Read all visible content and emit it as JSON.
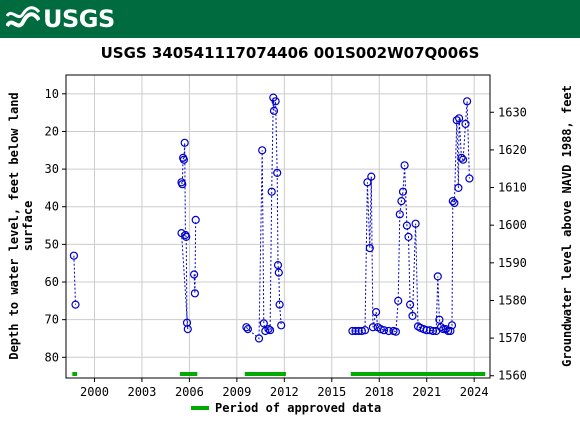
{
  "header": {
    "logo_text": "USGS",
    "brand_color": "#006b3f"
  },
  "chart_data": {
    "type": "scatter",
    "title": "USGS 340541117074406 001S002W07Q006S",
    "ylabel_left": "Depth to water level, feet below land surface",
    "ylabel_left_lines": [
      "Depth to water level, feet below land",
      "surface"
    ],
    "ylabel_right": "Groundwater level above NAVD 1988, feet",
    "xlim": [
      1998.2,
      2025.0
    ],
    "ylim_left": [
      85.5,
      5.0
    ],
    "ylim_right": [
      1559.4,
      1639.9
    ],
    "x_ticks": [
      2000,
      2003,
      2006,
      2009,
      2012,
      2015,
      2018,
      2021,
      2024
    ],
    "x_tick_labels": [
      "2000",
      "2003",
      "2006",
      "2009",
      "2012",
      "2015",
      "2018",
      "2021",
      "2024"
    ],
    "y_left_ticks": [
      10,
      20,
      30,
      40,
      50,
      60,
      70,
      80
    ],
    "y_left_tick_labels": [
      "10",
      "20",
      "30",
      "40",
      "50",
      "60",
      "70",
      "80"
    ],
    "y_right_ticks": [
      1560,
      1570,
      1580,
      1590,
      1600,
      1610,
      1620,
      1630
    ],
    "y_right_tick_labels": [
      "1560",
      "1570",
      "1580",
      "1590",
      "1600",
      "1610",
      "1620",
      "1630"
    ],
    "grid": true,
    "series_color": "#0000cc",
    "approved_color": "#00aa00",
    "series": [
      {
        "segments": [
          [
            [
              1998.7,
              53.0
            ],
            [
              1998.8,
              66.0
            ]
          ],
          [
            [
              2005.5,
              33.5
            ],
            [
              2005.55,
              34.0
            ],
            [
              2005.6,
              27.0
            ],
            [
              2005.65,
              27.5
            ],
            [
              2005.7,
              23.0
            ],
            [
              2005.75,
              47.5
            ],
            [
              2005.8,
              48.0
            ],
            [
              2005.85,
              70.8
            ],
            [
              2005.9,
              72.5
            ],
            [
              2005.5,
              47.0
            ]
          ],
          [
            [
              2006.3,
              58.0
            ],
            [
              2006.35,
              63.0
            ],
            [
              2006.4,
              43.5
            ]
          ],
          [
            [
              2009.6,
              72.0
            ],
            [
              2009.7,
              72.5
            ],
            [
              2010.4,
              75.0
            ],
            [
              2010.6,
              25.0
            ],
            [
              2010.7,
              71.0
            ],
            [
              2010.8,
              73.0
            ],
            [
              2011.0,
              72.5
            ],
            [
              2011.1,
              72.8
            ],
            [
              2011.2,
              36.0
            ],
            [
              2011.3,
              11.0
            ],
            [
              2011.35,
              14.5
            ],
            [
              2011.45,
              12.0
            ],
            [
              2011.55,
              31.0
            ],
            [
              2011.6,
              55.5
            ],
            [
              2011.65,
              57.5
            ],
            [
              2011.7,
              66.0
            ],
            [
              2011.8,
              71.5
            ]
          ]
        ]
      },
      {
        "segments": [
          [
            [
              2016.3,
              73.0
            ],
            [
              2016.5,
              73.0
            ],
            [
              2016.7,
              73.0
            ],
            [
              2016.9,
              73.0
            ],
            [
              2017.1,
              72.8
            ],
            [
              2017.25,
              33.5
            ],
            [
              2017.4,
              51.0
            ],
            [
              2017.5,
              32.0
            ],
            [
              2017.6,
              72.0
            ],
            [
              2017.8,
              68.0
            ],
            [
              2017.9,
              72.0
            ],
            [
              2018.1,
              72.5
            ],
            [
              2018.3,
              72.8
            ],
            [
              2018.6,
              73.0
            ],
            [
              2018.9,
              73.0
            ],
            [
              2019.05,
              73.2
            ],
            [
              2019.2,
              65.0
            ],
            [
              2019.3,
              42.0
            ],
            [
              2019.4,
              38.5
            ],
            [
              2019.5,
              36.0
            ],
            [
              2019.6,
              29.0
            ],
            [
              2019.75,
              45.0
            ],
            [
              2019.85,
              48.0
            ],
            [
              2019.95,
              66.0
            ],
            [
              2020.1,
              69.0
            ],
            [
              2020.3,
              44.5
            ],
            [
              2020.45,
              71.8
            ],
            [
              2020.6,
              72.2
            ],
            [
              2020.8,
              72.5
            ],
            [
              2021.0,
              72.8
            ],
            [
              2021.2,
              72.8
            ],
            [
              2021.4,
              73.0
            ],
            [
              2021.6,
              73.0
            ],
            [
              2021.7,
              58.5
            ],
            [
              2021.8,
              70.0
            ],
            [
              2021.9,
              72.0
            ],
            [
              2022.05,
              72.5
            ],
            [
              2022.2,
              72.5
            ],
            [
              2022.35,
              73.0
            ],
            [
              2022.5,
              73.0
            ],
            [
              2022.6,
              71.5
            ],
            [
              2022.65,
              38.5
            ],
            [
              2022.75,
              39.0
            ],
            [
              2022.9,
              17.0
            ],
            [
              2023.0,
              35.0
            ],
            [
              2023.05,
              16.5
            ],
            [
              2023.2,
              27.0
            ],
            [
              2023.3,
              27.5
            ],
            [
              2023.45,
              18.0
            ],
            [
              2023.55,
              12.0
            ],
            [
              2023.7,
              32.5
            ]
          ]
        ]
      }
    ],
    "approved_periods": [
      [
        1998.6,
        1998.9
      ],
      [
        2005.4,
        2006.5
      ],
      [
        2009.5,
        2012.1
      ],
      [
        2016.2,
        2024.7
      ]
    ],
    "legend": {
      "label": "Period of approved data",
      "placement": "bottom"
    }
  }
}
